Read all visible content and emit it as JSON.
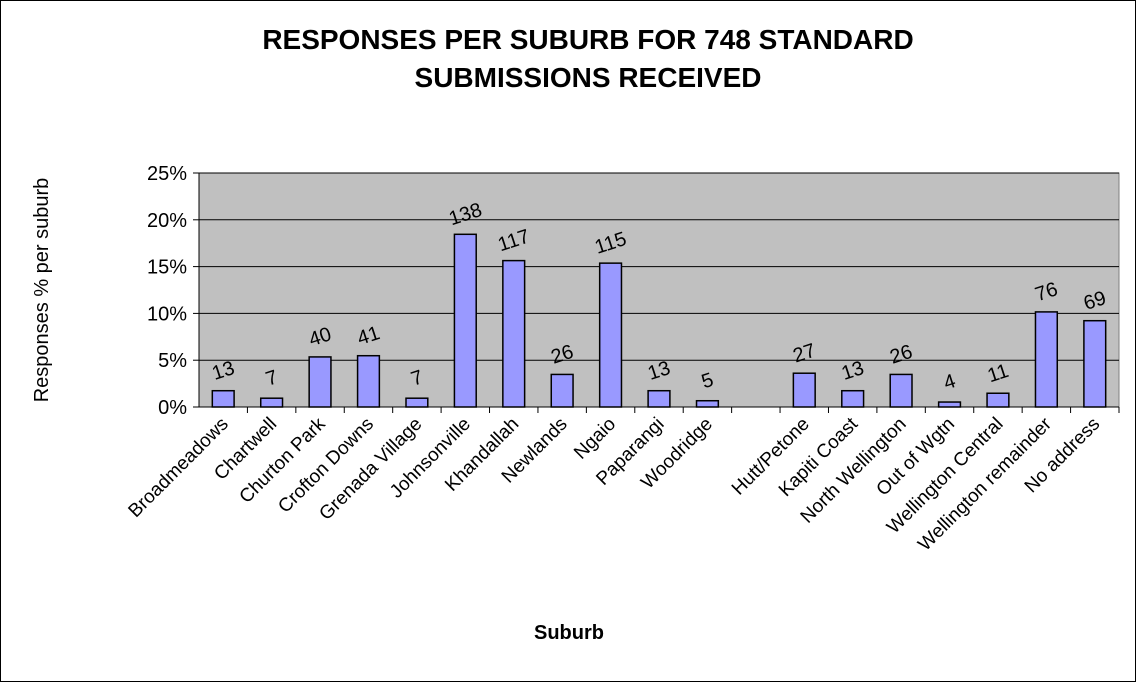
{
  "chart_data": {
    "type": "bar",
    "title_lines": [
      "RESPONSES PER SUBURB FOR 748 STANDARD",
      "SUBMISSIONS RECEIVED"
    ],
    "xlabel": "Suburb",
    "ylabel": "Responses % per suburb",
    "ylim": [
      0,
      25
    ],
    "y_ticks": [
      0,
      5,
      10,
      15,
      20,
      25
    ],
    "y_tick_labels": [
      "0%",
      "5%",
      "10%",
      "15%",
      "20%",
      "25%"
    ],
    "grid": true,
    "legend": "none",
    "categories": [
      "Broadmeadows",
      "Chartwell",
      "Churton Park",
      "Crofton Downs",
      "Grenada Village",
      "Johnsonville",
      "Khandallah",
      "Newlands",
      "Ngaio",
      "Paparangi",
      "Woodridge",
      "",
      "Hutt/Petone",
      "Kapiti Coast",
      "North Wellington",
      "Out of Wgtn",
      "Wellington Central",
      "Wellington remainder",
      "No address"
    ],
    "values": [
      1.74,
      0.94,
      5.35,
      5.48,
      0.94,
      18.45,
      15.64,
      3.48,
      15.37,
      1.74,
      0.67,
      null,
      3.61,
      1.74,
      3.48,
      0.53,
      1.47,
      10.16,
      9.22
    ],
    "data_labels": [
      "13",
      "7",
      "40",
      "41",
      "7",
      "138",
      "117",
      "26",
      "115",
      "13",
      "5",
      "",
      "27",
      "13",
      "26",
      "4",
      "11",
      "76",
      "69"
    ],
    "colors": {
      "bar_fill": "#9999ff",
      "bar_stroke": "#000000",
      "plot_bg": "#c0c0c0",
      "gridline": "#000000"
    }
  }
}
